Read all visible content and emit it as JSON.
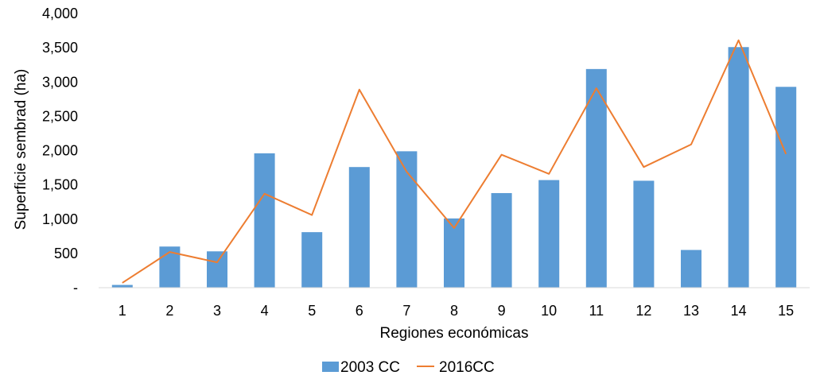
{
  "chart_data": {
    "type": "bar",
    "xlabel": "Regiones económicas",
    "ylabel": "Superficie sembrad (ha)",
    "ylim": [
      0,
      4000
    ],
    "yticks": [
      0,
      500,
      1000,
      1500,
      2000,
      2500,
      3000,
      3500,
      4000
    ],
    "ytick_labels": [
      "-",
      "500",
      "1,000",
      "1,500",
      "2,000",
      "2,500",
      "3,000",
      "3,500",
      "4,000"
    ],
    "categories": [
      "1",
      "2",
      "3",
      "4",
      "5",
      "6",
      "7",
      "8",
      "9",
      "10",
      "11",
      "12",
      "13",
      "14",
      "15"
    ],
    "grid": false,
    "legend_position": "bottom",
    "series": [
      {
        "name": "2003 CC",
        "type": "bar",
        "color": "#5b9bd5",
        "values": [
          40,
          600,
          530,
          1960,
          810,
          1760,
          1990,
          1010,
          1380,
          1570,
          3190,
          1560,
          550,
          3510,
          2930
        ]
      },
      {
        "name": "2016CC",
        "type": "line",
        "color": "#ed7d31",
        "values": [
          70,
          520,
          370,
          1370,
          1060,
          2890,
          1690,
          870,
          1940,
          1660,
          2910,
          1760,
          2090,
          3610,
          1950
        ]
      }
    ]
  }
}
